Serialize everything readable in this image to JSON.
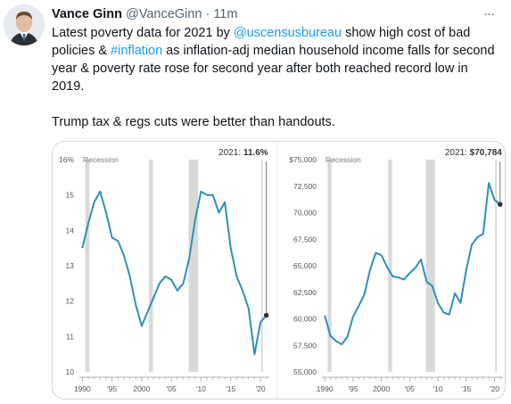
{
  "tweet": {
    "author_name": "Vance Ginn",
    "handle": "@VanceGinn",
    "separator": "·",
    "time": "11m",
    "more_label": "···",
    "text_line1_pre": "Latest poverty data for 2021 by ",
    "mention": "@uscensusbureau",
    "text_line1_mid": " show high cost of bad policies & ",
    "hashtag": "#inflation",
    "text_line1_post": " as inflation-adj median household income falls for second year & poverty rate rose for second year after both reached record low in 2019.",
    "text_para2": "Trump tax & regs cuts were better than handouts."
  },
  "colors": {
    "line": "#2f8fb8",
    "recession": "#d9d9d9",
    "link": "#1d9bf0",
    "text_secondary": "#536471",
    "axis_text": "#555555"
  },
  "chart_data": [
    {
      "type": "line",
      "title": "",
      "annotation_label": "2021: ",
      "annotation_value": "11.6%",
      "recession_label": "Recession",
      "y_tick_labels": [
        "16%",
        "15",
        "14",
        "13",
        "12",
        "11",
        "10"
      ],
      "y_ticks": [
        16,
        15,
        14,
        13,
        12,
        11,
        10
      ],
      "x_tick_labels": [
        "1990",
        "'95",
        "2000",
        "'05",
        "'10",
        "'15",
        "'20"
      ],
      "x_ticks": [
        1990,
        1995,
        2000,
        2005,
        2010,
        2015,
        2020
      ],
      "ylim": [
        10,
        16
      ],
      "xlim": [
        1989.5,
        2021.5
      ],
      "recessions": [
        [
          1990.5,
          1991.2
        ],
        [
          2001.2,
          2001.9
        ],
        [
          2007.9,
          2009.5
        ],
        [
          2020.1,
          2020.4
        ]
      ],
      "x": [
        1990,
        1991,
        1992,
        1993,
        1994,
        1995,
        1996,
        1997,
        1998,
        1999,
        2000,
        2001,
        2002,
        2003,
        2004,
        2005,
        2006,
        2007,
        2008,
        2009,
        2010,
        2011,
        2012,
        2013,
        2014,
        2015,
        2016,
        2017,
        2018,
        2019,
        2020,
        2021
      ],
      "values": [
        13.5,
        14.2,
        14.8,
        15.1,
        14.5,
        13.8,
        13.7,
        13.3,
        12.7,
        11.9,
        11.3,
        11.7,
        12.1,
        12.5,
        12.7,
        12.6,
        12.3,
        12.5,
        13.2,
        14.3,
        15.1,
        15.0,
        15.0,
        14.5,
        14.8,
        13.5,
        12.7,
        12.3,
        11.8,
        10.5,
        11.4,
        11.6
      ]
    },
    {
      "type": "line",
      "title": "",
      "annotation_label": "2021: ",
      "annotation_value": "$70,784",
      "recession_label": "Recession",
      "y_tick_labels": [
        "$75,000",
        "72,500",
        "70,000",
        "67,500",
        "65,000",
        "62,500",
        "60,000",
        "57,500",
        "55,000"
      ],
      "y_ticks": [
        75000,
        72500,
        70000,
        67500,
        65000,
        62500,
        60000,
        57500,
        55000
      ],
      "x_tick_labels": [
        "1990",
        "'95",
        "2000",
        "'05",
        "'10",
        "'15",
        "'20"
      ],
      "x_ticks": [
        1990,
        1995,
        2000,
        2005,
        2010,
        2015,
        2020
      ],
      "ylim": [
        55000,
        75000
      ],
      "xlim": [
        1989.5,
        2021.5
      ],
      "recessions": [
        [
          1990.5,
          1991.2
        ],
        [
          2001.2,
          2001.9
        ],
        [
          2007.9,
          2009.5
        ],
        [
          2020.1,
          2020.4
        ]
      ],
      "x": [
        1990,
        1991,
        1992,
        1993,
        1994,
        1995,
        1996,
        1997,
        1998,
        1999,
        2000,
        2001,
        2002,
        2003,
        2004,
        2005,
        2006,
        2007,
        2008,
        2009,
        2010,
        2011,
        2012,
        2013,
        2014,
        2015,
        2016,
        2017,
        2018,
        2019,
        2020,
        2021
      ],
      "values": [
        60300,
        58400,
        57900,
        57600,
        58300,
        60200,
        61200,
        62300,
        64600,
        66200,
        66000,
        64900,
        64000,
        63900,
        63700,
        64300,
        64800,
        65600,
        63500,
        63100,
        61500,
        60600,
        60400,
        62400,
        61500,
        64600,
        67000,
        67700,
        68000,
        72800,
        71200,
        70784
      ]
    }
  ]
}
